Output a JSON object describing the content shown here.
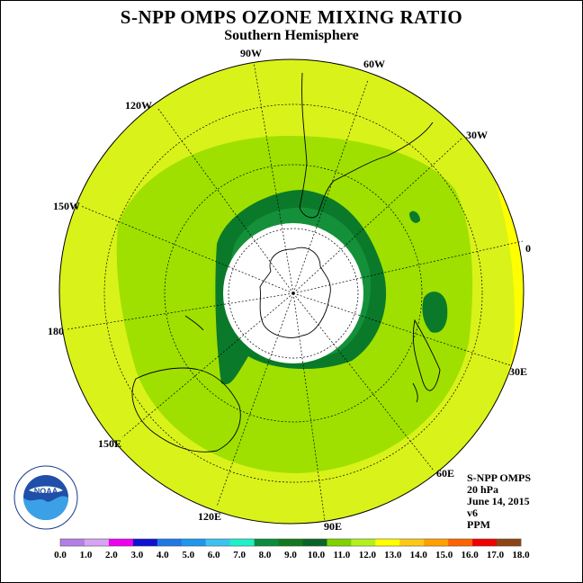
{
  "title": "S-NPP OMPS OZONE MIXING RATIO",
  "subtitle": "Southern Hemisphere",
  "longitude_labels": [
    "90W",
    "60W",
    "30W",
    "0",
    "30E",
    "60E",
    "90E",
    "120E",
    "150E",
    "180",
    "150W",
    "120W"
  ],
  "info": {
    "instrument": "S-NPP OMPS",
    "level": "20 hPa",
    "date": "June 14, 2015",
    "version": "v6",
    "units": "PPM"
  },
  "colorbar": {
    "ticks": [
      "0.0",
      "1.0",
      "2.0",
      "3.0",
      "4.0",
      "5.0",
      "6.0",
      "7.0",
      "8.0",
      "9.0",
      "10.0",
      "11.0",
      "12.0",
      "13.0",
      "14.0",
      "15.0",
      "16.0",
      "17.0",
      "18.0"
    ],
    "colors": [
      "#b47ee6",
      "#d5a4f2",
      "#ee00ee",
      "#1010d2",
      "#1e78e6",
      "#1e96f0",
      "#3cc2f0",
      "#1ef0c8",
      "#0a8c3c",
      "#14781e",
      "#0a6428",
      "#7ed200",
      "#b4f01e",
      "#ffff00",
      "#ffc814",
      "#ffa000",
      "#ff6400",
      "#f00000",
      "#8b4513"
    ]
  },
  "logo": {
    "text": "NOAA",
    "ring_text": "NATIONAL OCEANIC AND ATMOSPHERIC ADMINISTRATION",
    "ring_text_bottom": "U.S. DEPARTMENT OF COMMERCE"
  }
}
